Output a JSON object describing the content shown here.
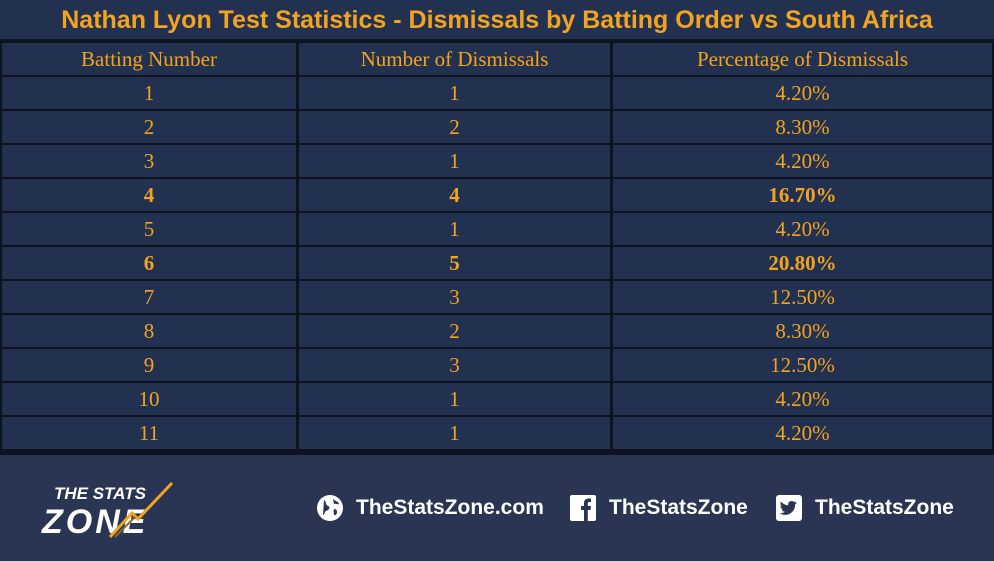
{
  "title": "Nathan Lyon Test Statistics - Dismissals by Batting Order vs South Africa",
  "chart_data": {
    "type": "table",
    "title": "Nathan Lyon Test Statistics - Dismissals by Batting Order vs South Africa",
    "columns": [
      "Batting Number",
      "Number of Dismissals",
      "Percentage of Dismissals"
    ],
    "rows": [
      {
        "cells": [
          "1",
          "1",
          "4.20%"
        ],
        "highlight": false
      },
      {
        "cells": [
          "2",
          "2",
          "8.30%"
        ],
        "highlight": false
      },
      {
        "cells": [
          "3",
          "1",
          "4.20%"
        ],
        "highlight": false
      },
      {
        "cells": [
          "4",
          "4",
          "16.70%"
        ],
        "highlight": true
      },
      {
        "cells": [
          "5",
          "1",
          "4.20%"
        ],
        "highlight": false
      },
      {
        "cells": [
          "6",
          "5",
          "20.80%"
        ],
        "highlight": true
      },
      {
        "cells": [
          "7",
          "3",
          "12.50%"
        ],
        "highlight": false
      },
      {
        "cells": [
          "8",
          "2",
          "8.30%"
        ],
        "highlight": false
      },
      {
        "cells": [
          "9",
          "3",
          "12.50%"
        ],
        "highlight": false
      },
      {
        "cells": [
          "10",
          "1",
          "4.20%"
        ],
        "highlight": false
      },
      {
        "cells": [
          "11",
          "1",
          "4.20%"
        ],
        "highlight": false
      }
    ]
  },
  "footer": {
    "logo_top": "THE STATS",
    "logo_bottom": "ZONE",
    "website": "TheStatsZone.com",
    "facebook": "TheStatsZone",
    "twitter": "TheStatsZone"
  },
  "colors": {
    "background": "#2a3553",
    "cell": "#233150",
    "grid_lines": "#0e1320",
    "text_accent": "#f2a31f",
    "footer_text": "#ffffff"
  },
  "icons": [
    "globe-icon",
    "facebook-icon",
    "twitter-icon"
  ]
}
